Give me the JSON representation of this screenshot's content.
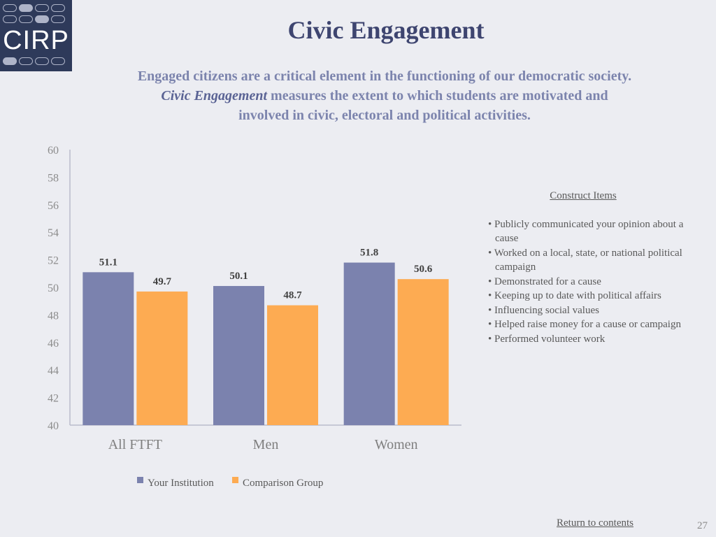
{
  "logo": {
    "text": "CIRP"
  },
  "title": "Civic Engagement",
  "subtitle": {
    "line1": "Engaged citizens are a critical element in the functioning of our democratic society.",
    "emphasis": "Civic Engagement",
    "line2_rest": " measures the extent to which students are motivated and",
    "line3": "involved in civic, electoral and political activities."
  },
  "colors": {
    "your_institution": "#7b82ae",
    "comparison_group": "#fdab52",
    "axis": "#b9bccb"
  },
  "chart_data": {
    "type": "bar",
    "title": "",
    "xlabel": "",
    "ylabel": "",
    "ylim": [
      40,
      60
    ],
    "yticks": [
      "40",
      "42",
      "44",
      "46",
      "48",
      "50",
      "52",
      "54",
      "56",
      "58",
      "60"
    ],
    "categories": [
      "All FTFT",
      "Men",
      "Women"
    ],
    "series": [
      {
        "name": "Your Institution",
        "values": [
          51.1,
          50.1,
          51.8
        ]
      },
      {
        "name": "Comparison Group",
        "values": [
          49.7,
          48.7,
          50.6
        ]
      }
    ],
    "legend_position": "bottom",
    "grid": false
  },
  "construct": {
    "title": "Construct Items",
    "items": [
      "• Publicly communicated your opinion about a cause",
      "• Worked on a local, state, or national political campaign",
      "• Demonstrated for a cause",
      "• Keeping up to date with political affairs",
      "• Influencing social values",
      "• Helped raise money for a cause or campaign",
      "• Performed volunteer work"
    ]
  },
  "footer": {
    "link": "Return to contents",
    "page_number": "27"
  }
}
